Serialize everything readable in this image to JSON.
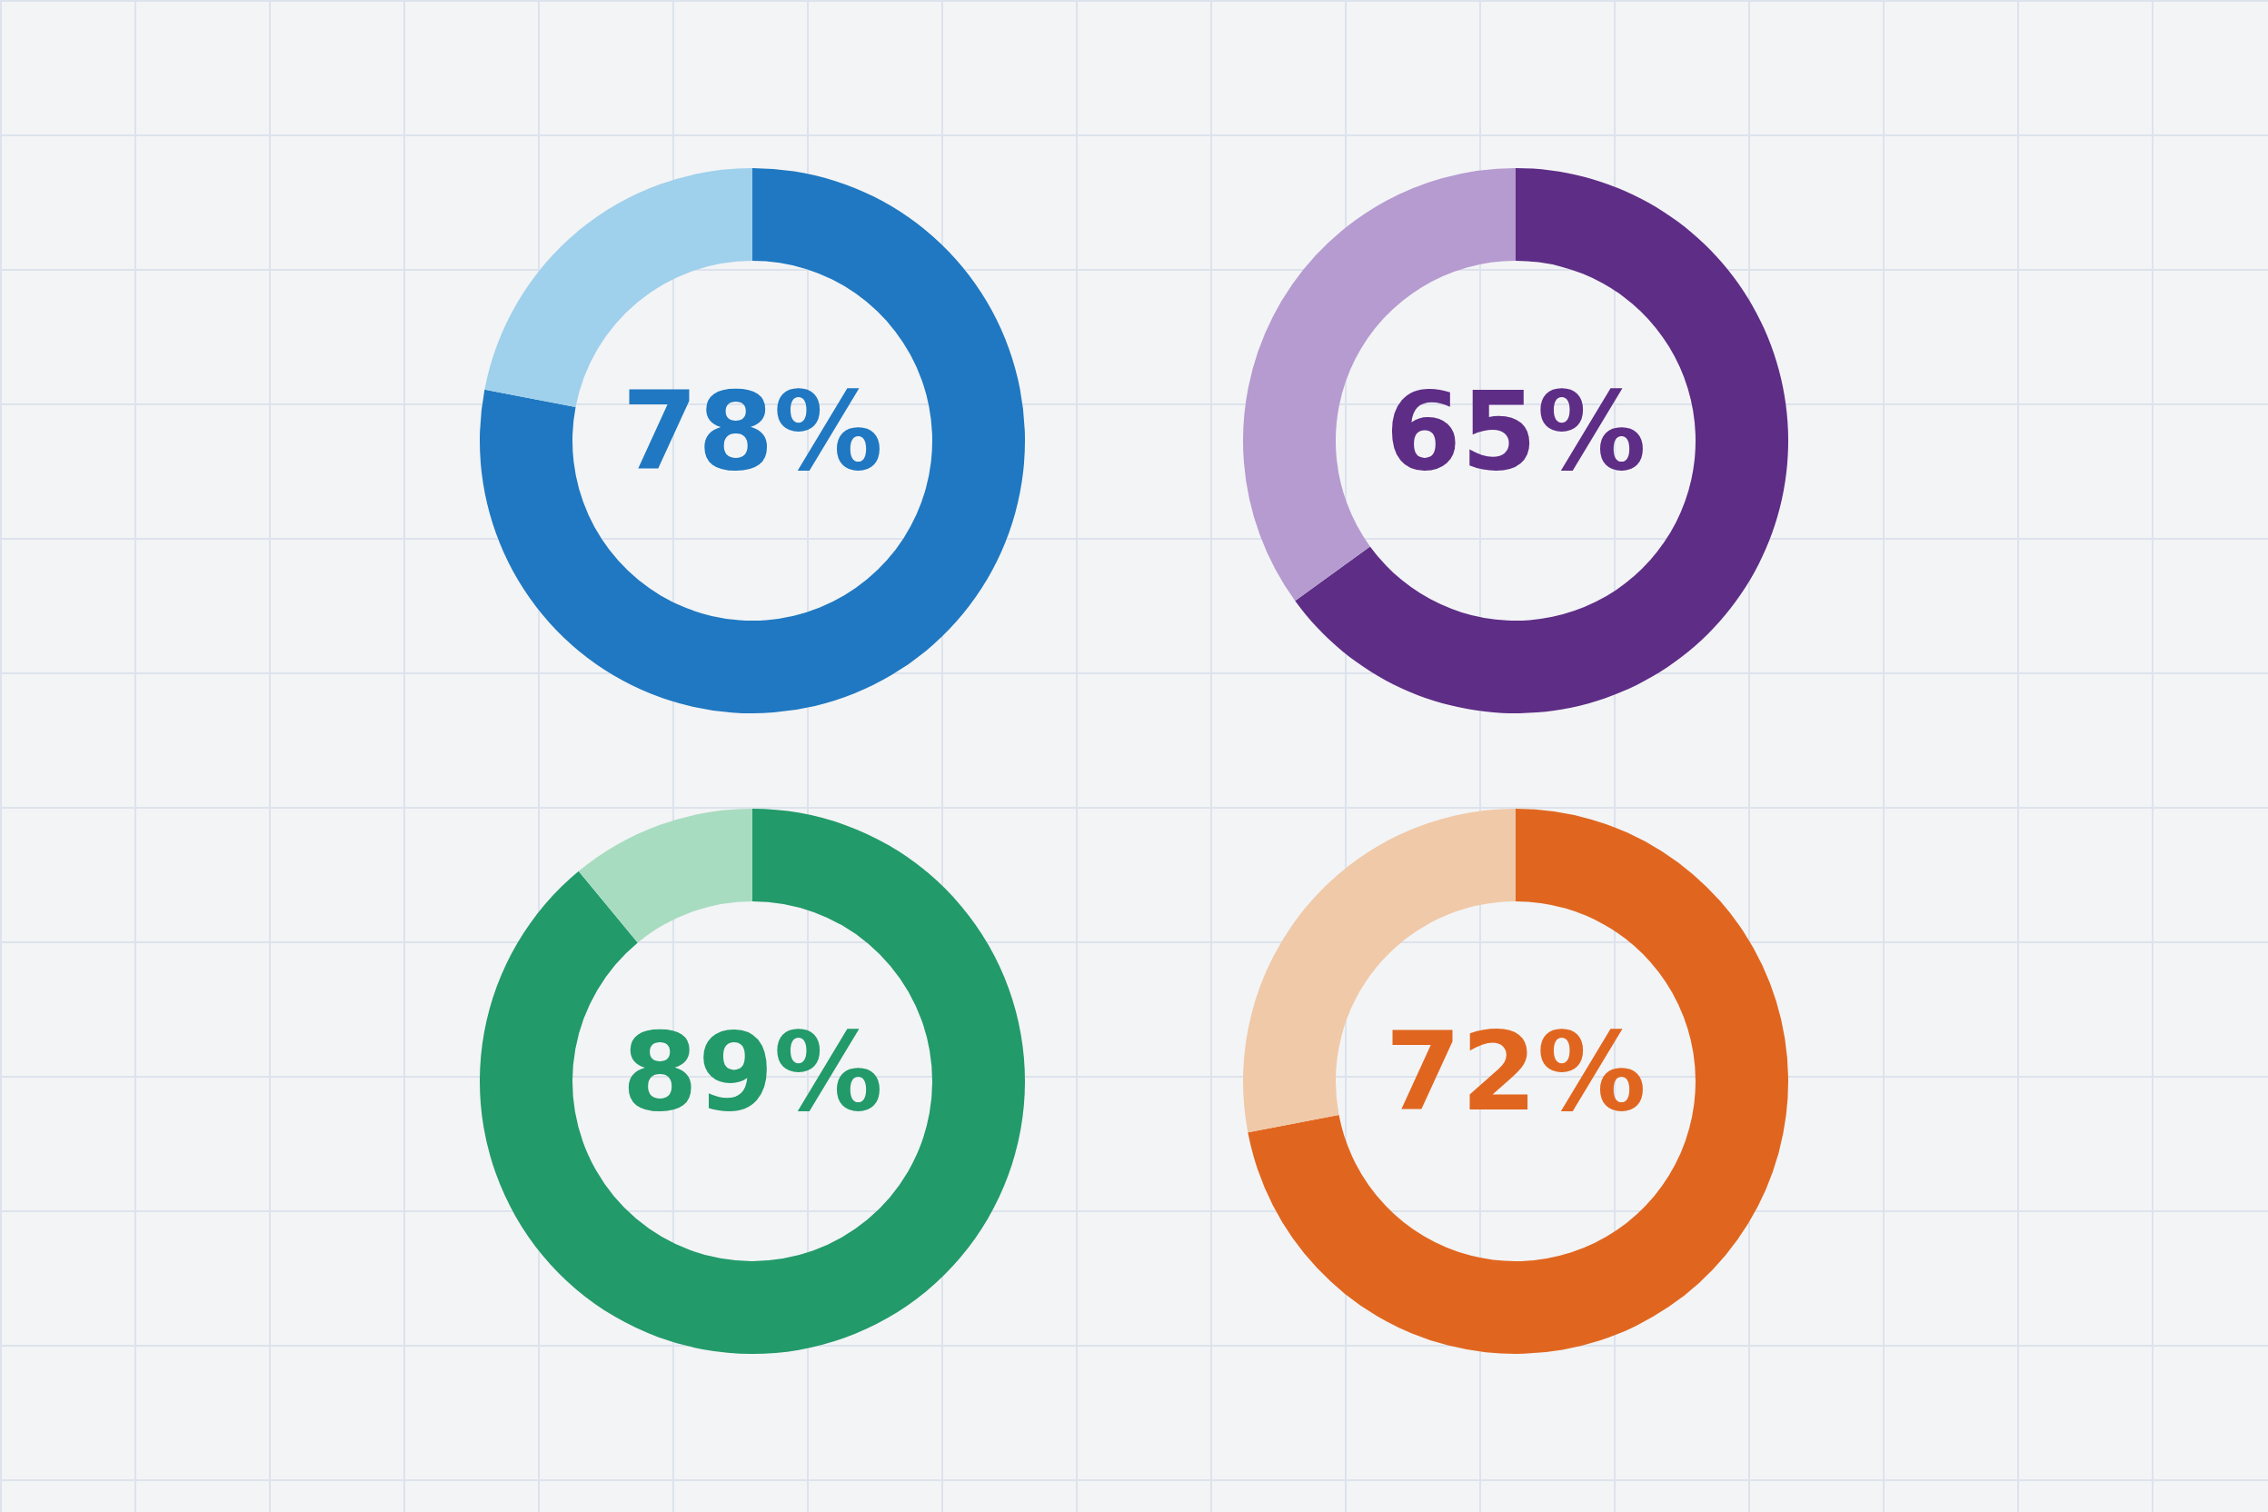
{
  "chart_data": [
    {
      "type": "donut",
      "categories": [
        null,
        null
      ],
      "values": [
        78,
        22
      ],
      "colors": [
        "#1f78c1",
        "#9fd0ec"
      ],
      "value_labels": [
        "78%",
        null
      ]
    },
    {
      "type": "donut",
      "categories": [
        null,
        null
      ],
      "values": [
        65,
        35
      ],
      "colors": [
        "#5e2d86",
        "#b59bd0"
      ],
      "value_labels": [
        "65%",
        null
      ]
    },
    {
      "type": "donut",
      "categories": [
        null,
        null
      ],
      "values": [
        89,
        11
      ],
      "colors": [
        "#229a6a",
        "#a8dcc0"
      ],
      "value_labels": [
        "89%",
        null
      ]
    },
    {
      "type": "donut",
      "categories": [
        null,
        null
      ],
      "values": [
        72,
        28
      ],
      "colors": [
        "#e0661f",
        "#f0c9a8"
      ],
      "value_labels": [
        "72%",
        null
      ]
    }
  ]
}
